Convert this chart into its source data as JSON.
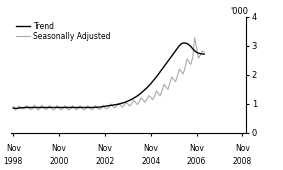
{
  "ylabel": "'000",
  "ylim": [
    0,
    4
  ],
  "yticks": [
    0,
    1,
    2,
    3,
    4
  ],
  "xlim_start": 1998.75,
  "xlim_end": 2009.0,
  "xtick_years": [
    1998,
    2000,
    2002,
    2004,
    2006,
    2008
  ],
  "trend_color": "#000000",
  "seasonal_color": "#aaaaaa",
  "trend_linewidth": 1.0,
  "seasonal_linewidth": 0.8,
  "legend_items": [
    "Trend",
    "Seasonally Adjusted"
  ],
  "background_color": "#ffffff",
  "trend_data": [
    0.85,
    0.84,
    0.84,
    0.85,
    0.86,
    0.86,
    0.87,
    0.87,
    0.87,
    0.87,
    0.87,
    0.87,
    0.87,
    0.87,
    0.87,
    0.87,
    0.87,
    0.87,
    0.87,
    0.87,
    0.87,
    0.87,
    0.87,
    0.87,
    0.87,
    0.87,
    0.87,
    0.87,
    0.87,
    0.87,
    0.87,
    0.87,
    0.87,
    0.87,
    0.87,
    0.87,
    0.87,
    0.87,
    0.87,
    0.87,
    0.87,
    0.87,
    0.87,
    0.88,
    0.88,
    0.88,
    0.89,
    0.9,
    0.91,
    0.92,
    0.93,
    0.94,
    0.95,
    0.96,
    0.97,
    0.98,
    1.0,
    1.02,
    1.04,
    1.06,
    1.09,
    1.12,
    1.15,
    1.19,
    1.23,
    1.27,
    1.32,
    1.37,
    1.43,
    1.49,
    1.55,
    1.62,
    1.69,
    1.77,
    1.85,
    1.93,
    2.02,
    2.11,
    2.2,
    2.29,
    2.38,
    2.47,
    2.56,
    2.65,
    2.74,
    2.83,
    2.92,
    3.01,
    3.07,
    3.1,
    3.1,
    3.08,
    3.04,
    2.98,
    2.9,
    2.83,
    2.78,
    2.75,
    2.73,
    2.72,
    2.72
  ],
  "seasonal_data": [
    0.9,
    0.78,
    0.82,
    0.92,
    0.87,
    0.82,
    0.84,
    0.93,
    0.87,
    0.8,
    0.82,
    0.95,
    0.88,
    0.78,
    0.84,
    0.95,
    0.86,
    0.8,
    0.83,
    0.94,
    0.84,
    0.78,
    0.82,
    0.94,
    0.86,
    0.79,
    0.83,
    0.93,
    0.84,
    0.79,
    0.82,
    0.93,
    0.85,
    0.79,
    0.83,
    0.93,
    0.84,
    0.79,
    0.82,
    0.93,
    0.85,
    0.8,
    0.82,
    0.93,
    0.85,
    0.8,
    0.83,
    0.95,
    0.86,
    0.82,
    0.87,
    0.99,
    0.92,
    0.86,
    0.9,
    1.02,
    0.96,
    0.88,
    0.93,
    1.05,
    0.99,
    0.92,
    0.99,
    1.12,
    1.05,
    0.97,
    1.07,
    1.2,
    1.13,
    1.05,
    1.15,
    1.28,
    1.22,
    1.14,
    1.26,
    1.44,
    1.35,
    1.27,
    1.47,
    1.67,
    1.58,
    1.5,
    1.7,
    1.92,
    1.84,
    1.76,
    1.96,
    2.2,
    2.1,
    2.03,
    2.25,
    2.55,
    2.44,
    2.36,
    2.6,
    3.28,
    2.94,
    2.58,
    2.68,
    2.82,
    2.8
  ]
}
